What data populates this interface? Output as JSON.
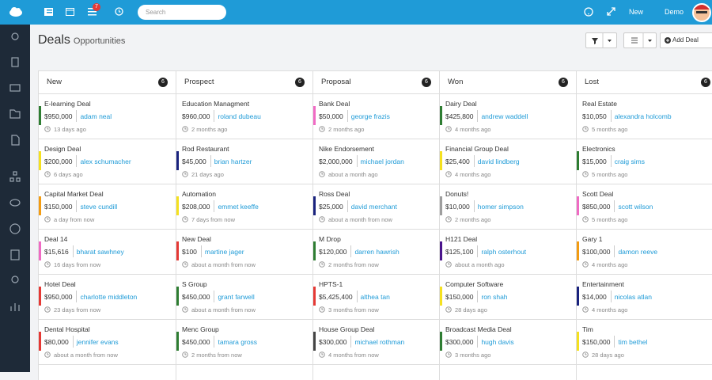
{
  "topbar": {
    "search_placeholder": "Search",
    "notification_count": "7",
    "new_menu": "New",
    "user_menu": "Demo"
  },
  "header": {
    "title": "Deals",
    "subtitle": "Opportunities",
    "add_button": "Add Deal"
  },
  "columns": [
    {
      "title": "New",
      "count": "6",
      "cards": [
        {
          "title": "E-learning Deal",
          "amount": "$950,000",
          "contact": "adam neal",
          "time": "13 days ago",
          "color": "#2e7d32"
        },
        {
          "title": "Design Deal",
          "amount": "$200,000",
          "contact": "alex schumacher",
          "time": "6 days ago",
          "color": "#f5e11f"
        },
        {
          "title": "Capital Market Deal",
          "amount": "$150,000",
          "contact": "steve cundill",
          "time": "a day from now",
          "color": "#f39c12"
        },
        {
          "title": "Deal 14",
          "amount": "$15,616",
          "contact": "bharat sawhney",
          "time": "16 days from now",
          "color": "#f06bc4"
        },
        {
          "title": "Hotel Deal",
          "amount": "$950,000",
          "contact": "charlotte middleton",
          "time": "23 days from now",
          "color": "#e53935"
        },
        {
          "title": "Dental Hospital",
          "amount": "$80,000",
          "contact": "jennifer evans",
          "time": "about a month from now",
          "color": "#e53935"
        }
      ]
    },
    {
      "title": "Prospect",
      "count": "6",
      "cards": [
        {
          "title": "Education Managment",
          "amount": "$960,000",
          "contact": "roland dubeau",
          "time": "2 months ago"
        },
        {
          "title": "Rod Restaurant",
          "amount": "$45,000",
          "contact": "brian hartzer",
          "time": "21 days ago",
          "color": "#1a237e"
        },
        {
          "title": "Automation",
          "amount": "$208,000",
          "contact": "emmet keeffe",
          "time": "7 days from now",
          "color": "#f5e11f"
        },
        {
          "title": "New Deal",
          "amount": "$100",
          "contact": "martine jager",
          "time": "about a month from now",
          "color": "#e53935"
        },
        {
          "title": "S Group",
          "amount": "$450,000",
          "contact": "grant farwell",
          "time": "about a month from now",
          "color": "#2e7d32"
        },
        {
          "title": "Menc Group",
          "amount": "$450,000",
          "contact": "tamara gross",
          "time": "2 months from now",
          "color": "#2e7d32"
        }
      ]
    },
    {
      "title": "Proposal",
      "count": "6",
      "cards": [
        {
          "title": "Bank Deal",
          "amount": "$50,000",
          "contact": "george frazis",
          "time": "2 months ago",
          "color": "#f06bc4"
        },
        {
          "title": "Nike Endorsement",
          "amount": "$2,000,000",
          "contact": "michael jordan",
          "time": "about a month ago"
        },
        {
          "title": "Ross Deal",
          "amount": "$25,000",
          "contact": "david merchant",
          "time": "about a month from now",
          "color": "#1a237e"
        },
        {
          "title": "M Drop",
          "amount": "$120,000",
          "contact": "darren hawrish",
          "time": "2 months from now",
          "color": "#2e7d32"
        },
        {
          "title": "HPTS-1",
          "amount": "$5,425,400",
          "contact": "althea tan",
          "time": "3 months from now",
          "color": "#e53935"
        },
        {
          "title": "House Group Deal",
          "amount": "$300,000",
          "contact": "michael rothman",
          "time": "4 months from now",
          "color": "#444444"
        }
      ]
    },
    {
      "title": "Won",
      "count": "6",
      "cards": [
        {
          "title": "Dairy Deal",
          "amount": "$425,800",
          "contact": "andrew waddell",
          "time": "4 months ago",
          "color": "#2e7d32"
        },
        {
          "title": "Financial Group Deal",
          "amount": "$25,400",
          "contact": "david lindberg",
          "time": "4 months ago",
          "color": "#f5e11f"
        },
        {
          "title": "Donuts!",
          "amount": "$10,000",
          "contact": "homer simpson",
          "time": "2 months ago",
          "color": "#9e9e9e"
        },
        {
          "title": "H121 Deal",
          "amount": "$125,100",
          "contact": "ralph osterhout",
          "time": "about a month ago",
          "color": "#4a148c"
        },
        {
          "title": "Computer Software",
          "amount": "$150,000",
          "contact": "ron shah",
          "time": "28 days ago",
          "color": "#f5e11f"
        },
        {
          "title": "Broadcast Media Deal",
          "amount": "$300,000",
          "contact": "hugh davis",
          "time": "3 months ago",
          "color": "#2e7d32"
        }
      ]
    },
    {
      "title": "Lost",
      "count": "6",
      "cards": [
        {
          "title": "Real Estate",
          "amount": "$10,050",
          "contact": "alexandra holcomb",
          "time": "5 months ago"
        },
        {
          "title": "Electronics",
          "amount": "$15,000",
          "contact": "craig sims",
          "time": "5 months ago",
          "color": "#2e7d32"
        },
        {
          "title": "Scott Deal",
          "amount": "$850,000",
          "contact": "scott wilson",
          "time": "5 months ago",
          "color": "#f06bc4"
        },
        {
          "title": "Gary 1",
          "amount": "$100,000",
          "contact": "damon reeve",
          "time": "4 months ago",
          "color": "#f39c12"
        },
        {
          "title": "Entertainment",
          "amount": "$14,000",
          "contact": "nicolas atlan",
          "time": "4 months ago",
          "color": "#1a237e"
        },
        {
          "title": "Tim",
          "amount": "$150,000",
          "contact": "tim bethel",
          "time": "28 days ago",
          "color": "#f5e11f"
        }
      ]
    }
  ]
}
